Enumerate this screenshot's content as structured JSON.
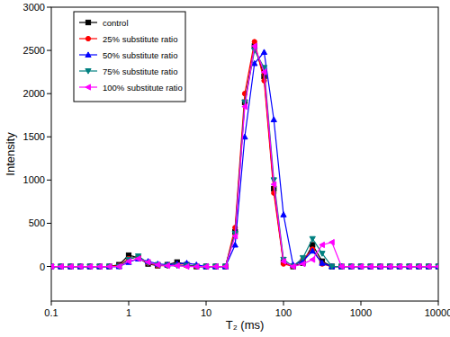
{
  "chart_data": {
    "type": "line",
    "x_label": "T₂ (ms)",
    "y_label": "Intensity",
    "log": "x",
    "grid": false,
    "legend": "top-left",
    "xlim": [
      0.1,
      10000
    ],
    "xticks": [
      0.1,
      1,
      10,
      100,
      1000,
      10000
    ],
    "ylim": [
      -400,
      3000
    ],
    "yticks": [
      0,
      500,
      1000,
      1500,
      2000,
      2500,
      3000
    ],
    "x": [
      0.1,
      0.133,
      0.178,
      0.237,
      0.316,
      0.422,
      0.562,
      0.75,
      1,
      1.33,
      1.78,
      2.37,
      3.16,
      4.22,
      5.62,
      7.5,
      10,
      13.3,
      17.8,
      23.7,
      31.6,
      42.2,
      56.2,
      75,
      100,
      133,
      178,
      237,
      316,
      422,
      562,
      750,
      1000,
      1334,
      1778,
      2371,
      3162,
      4217,
      5623,
      7499,
      10000
    ],
    "series": [
      {
        "name": "control",
        "color": "#000000",
        "marker": "square",
        "values": [
          0,
          0,
          0,
          0,
          0,
          0,
          0,
          20,
          130,
          100,
          30,
          10,
          20,
          50,
          20,
          0,
          0,
          0,
          0,
          400,
          1900,
          2550,
          2200,
          900,
          50,
          0,
          40,
          250,
          60,
          0,
          0,
          0,
          0,
          0,
          0,
          0,
          0,
          0,
          0,
          0,
          0
        ]
      },
      {
        "name": "25% substitute ratio",
        "color": "#ff0000",
        "marker": "circle",
        "values": [
          0,
          0,
          0,
          0,
          0,
          0,
          0,
          10,
          90,
          110,
          40,
          10,
          10,
          20,
          10,
          0,
          0,
          0,
          0,
          450,
          2000,
          2600,
          2150,
          850,
          30,
          0,
          80,
          200,
          30,
          0,
          0,
          0,
          0,
          0,
          0,
          0,
          0,
          0,
          0,
          0,
          0
        ]
      },
      {
        "name": "50% substitute ratio",
        "color": "#0000ff",
        "marker": "triangle-up",
        "values": [
          0,
          0,
          0,
          0,
          0,
          0,
          0,
          0,
          50,
          90,
          60,
          30,
          20,
          30,
          40,
          20,
          0,
          0,
          0,
          250,
          1500,
          2350,
          2480,
          1700,
          600,
          20,
          60,
          180,
          40,
          0,
          0,
          0,
          0,
          0,
          0,
          0,
          0,
          0,
          0,
          0,
          0
        ]
      },
      {
        "name": "75% substitute ratio",
        "color": "#008080",
        "marker": "triangle-down",
        "values": [
          0,
          0,
          0,
          0,
          0,
          0,
          0,
          0,
          80,
          120,
          40,
          20,
          10,
          10,
          10,
          0,
          0,
          0,
          0,
          380,
          1900,
          2500,
          2300,
          1000,
          80,
          0,
          100,
          320,
          150,
          0,
          0,
          0,
          0,
          0,
          0,
          0,
          0,
          0,
          0,
          0,
          0
        ]
      },
      {
        "name": "100% substitute ratio",
        "color": "#ff00ff",
        "marker": "triangle-left",
        "values": [
          0,
          0,
          0,
          0,
          0,
          0,
          0,
          0,
          60,
          90,
          50,
          20,
          10,
          10,
          0,
          0,
          0,
          0,
          0,
          350,
          1850,
          2550,
          2250,
          950,
          60,
          0,
          30,
          80,
          250,
          280,
          0,
          0,
          0,
          0,
          0,
          0,
          0,
          0,
          0,
          0,
          0
        ]
      }
    ]
  }
}
